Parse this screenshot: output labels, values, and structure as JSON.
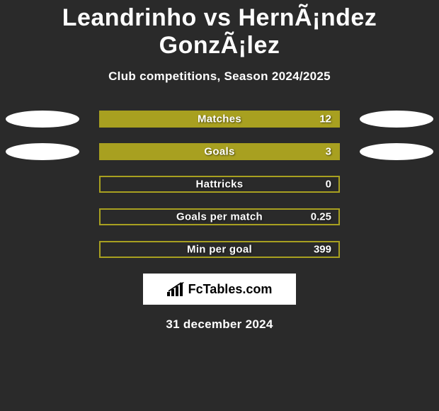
{
  "title": "Leandrinho vs HernÃ¡ndez GonzÃ¡lez",
  "subtitle": "Club competitions, Season 2024/2025",
  "date_text": "31 december 2024",
  "brand": "FcTables.com",
  "colors": {
    "background": "#2a2a2a",
    "barFill": "#a8a020",
    "barBorder": "#a8a020",
    "ellipse": "#ffffff",
    "text": "#ffffff"
  },
  "stats": [
    {
      "label": "Matches",
      "value": "12",
      "fill_pct": 100,
      "left_ellipse": true,
      "right_ellipse": true
    },
    {
      "label": "Goals",
      "value": "3",
      "fill_pct": 100,
      "left_ellipse": true,
      "right_ellipse": true
    },
    {
      "label": "Hattricks",
      "value": "0",
      "fill_pct": 0,
      "left_ellipse": false,
      "right_ellipse": false
    },
    {
      "label": "Goals per match",
      "value": "0.25",
      "fill_pct": 0,
      "left_ellipse": false,
      "right_ellipse": false
    },
    {
      "label": "Min per goal",
      "value": "399",
      "fill_pct": 0,
      "left_ellipse": false,
      "right_ellipse": false
    }
  ],
  "chart_styling": {
    "bar_track_width": 340,
    "bar_track_height": 24,
    "bar_border_width": 2,
    "ellipse_width": 104,
    "ellipse_height": 24,
    "row_gap": 22,
    "label_fontsize": 15,
    "title_fontsize": 34,
    "subtitle_fontsize": 17,
    "date_fontsize": 17
  }
}
